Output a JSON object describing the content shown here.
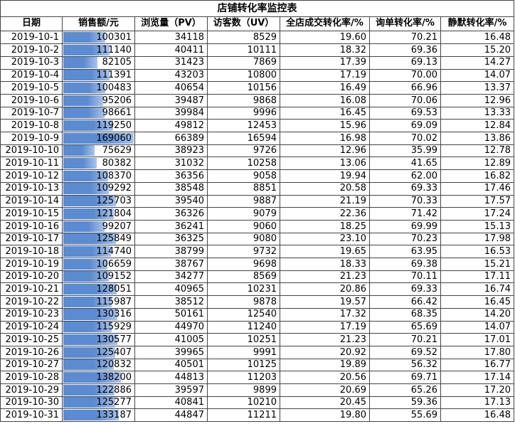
{
  "table": {
    "title": "店铺转化率监控表",
    "header": [
      "日期",
      "销售额/元",
      "浏览量（PV）",
      "访客数（UV）",
      "全店成交转化率/%",
      "询单转化率/%",
      "静默转化率/%"
    ],
    "rows": [
      [
        "2019-10-1",
        100301,
        34118,
        8529,
        "19.60",
        "70.21",
        "16.48"
      ],
      [
        "2019-10-2",
        111140,
        40411,
        10111,
        "18.32",
        "69.36",
        "15.20"
      ],
      [
        "2019-10-3",
        82105,
        31423,
        7869,
        "17.39",
        "69.13",
        "14.27"
      ],
      [
        "2019-10-4",
        111391,
        43203,
        10800,
        "17.19",
        "70.00",
        "14.07"
      ],
      [
        "2019-10-5",
        100483,
        40654,
        10156,
        "16.49",
        "66.96",
        "13.37"
      ],
      [
        "2019-10-6",
        95206,
        39487,
        9868,
        "16.08",
        "70.06",
        "12.96"
      ],
      [
        "2019-10-7",
        98661,
        39984,
        9996,
        "16.45",
        "69.53",
        "13.33"
      ],
      [
        "2019-10-8",
        119250,
        49812,
        12453,
        "15.96",
        "69.09",
        "12.84"
      ],
      [
        "2019-10-9",
        169060,
        66389,
        16594,
        "16.98",
        "70.02",
        "13.86"
      ],
      [
        "2019-10-10",
        75629,
        38923,
        9726,
        "12.96",
        "35.99",
        "12.78"
      ],
      [
        "2019-10-11",
        80382,
        31032,
        10258,
        "13.06",
        "41.65",
        "12.89"
      ],
      [
        "2019-10-12",
        108370,
        36356,
        9058,
        "19.94",
        "62.00",
        "16.82"
      ],
      [
        "2019-10-13",
        109292,
        38548,
        8851,
        "20.58",
        "69.33",
        "17.46"
      ],
      [
        "2019-10-14",
        125703,
        39540,
        9887,
        "21.19",
        "70.33",
        "17.57"
      ],
      [
        "2019-10-15",
        121804,
        36326,
        9079,
        "22.36",
        "71.42",
        "17.24"
      ],
      [
        "2019-10-16",
        99207,
        36241,
        9060,
        "18.25",
        "69.99",
        "15.13"
      ],
      [
        "2019-10-17",
        125849,
        36325,
        9080,
        "23.10",
        "70.23",
        "17.98"
      ],
      [
        "2019-10-18",
        114740,
        38799,
        9732,
        "19.65",
        "63.95",
        "16.53"
      ],
      [
        "2019-10-19",
        106659,
        38767,
        9698,
        "18.33",
        "69.38",
        "15.21"
      ],
      [
        "2019-10-20",
        109152,
        34277,
        8569,
        "21.23",
        "70.11",
        "17.11"
      ],
      [
        "2019-10-21",
        128051,
        40965,
        10231,
        "20.86",
        "69.33",
        "16.74"
      ],
      [
        "2019-10-22",
        115987,
        38512,
        9878,
        "19.57",
        "66.42",
        "16.45"
      ],
      [
        "2019-10-23",
        130316,
        50161,
        12540,
        "17.32",
        "68.35",
        "14.20"
      ],
      [
        "2019-10-24",
        115929,
        44970,
        11240,
        "17.19",
        "65.69",
        "14.07"
      ],
      [
        "2019-10-25",
        130577,
        41005,
        10251,
        "21.23",
        "70.21",
        "17.01"
      ],
      [
        "2019-10-26",
        125407,
        39965,
        9991,
        "20.92",
        "69.52",
        "17.80"
      ],
      [
        "2019-10-27",
        120832,
        40501,
        10125,
        "19.89",
        "56.32",
        "16.77"
      ],
      [
        "2019-10-28",
        138200,
        44813,
        11203,
        "20.56",
        "69.71",
        "17.14"
      ],
      [
        "2019-10-29",
        122886,
        39597,
        9899,
        "20.69",
        "65.26",
        "17.20"
      ],
      [
        "2019-10-30",
        125277,
        40841,
        10210,
        "20.45",
        "59.36",
        "17.13"
      ],
      [
        "2019-10-31",
        133187,
        44847,
        11211,
        "19.80",
        "55.69",
        "16.48"
      ]
    ]
  }
}
